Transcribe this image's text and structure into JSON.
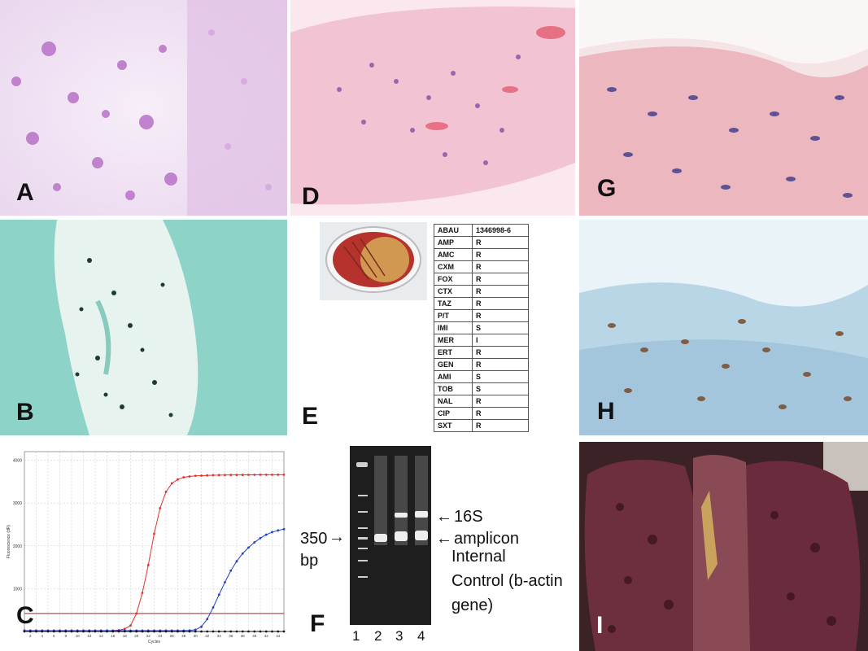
{
  "panels": {
    "A": "A",
    "B": "B",
    "C": "C",
    "D": "D",
    "E": "E",
    "F": "F",
    "G": "G",
    "H": "H",
    "I": "I"
  },
  "susceptibility": {
    "header": [
      "ABAU",
      "1346998-6"
    ],
    "rows": [
      [
        "AMP",
        "R"
      ],
      [
        "AMC",
        "R"
      ],
      [
        "CXM",
        "R"
      ],
      [
        "FOX",
        "R"
      ],
      [
        "CTX",
        "R"
      ],
      [
        "TAZ",
        "R"
      ],
      [
        "P/T",
        "R"
      ],
      [
        "IMI",
        "S"
      ],
      [
        "MER",
        "I"
      ],
      [
        "ERT",
        "R"
      ],
      [
        "GEN",
        "R"
      ],
      [
        "AMI",
        "S"
      ],
      [
        "TOB",
        "S"
      ],
      [
        "NAL",
        "R"
      ],
      [
        "CIP",
        "R"
      ],
      [
        "SXT",
        "R"
      ]
    ]
  },
  "gel": {
    "marker_label": [
      "350",
      "bp"
    ],
    "band_16s": "16S",
    "band_amplicon": "amplicon",
    "internal_control": [
      "Internal",
      "Control (b-actin",
      "gene)"
    ],
    "lanes": [
      "1",
      "2",
      "3",
      "4"
    ]
  },
  "qpcr": {
    "y_axis_label": "Fluorescence (dR)",
    "x_axis_label": "Cycles",
    "y_ticks": [
      "4000",
      "3000",
      "2000",
      "1000"
    ],
    "x_ticks": [
      "2",
      "4",
      "6",
      "8",
      "10",
      "12",
      "14",
      "16",
      "18",
      "20",
      "22",
      "24",
      "26",
      "28",
      "30",
      "32",
      "34",
      "36",
      "38",
      "40",
      "42",
      "44"
    ],
    "colors": {
      "red_curve": "#e5302b",
      "blue_curve": "#2440c8",
      "baseline": "#111111",
      "threshold": "#b22222"
    }
  },
  "chart_data": {
    "type": "line",
    "xlabel": "Cycles",
    "ylabel": "Fluorescence (dR)",
    "xlim": [
      1,
      45
    ],
    "ylim": [
      0,
      4200
    ],
    "x": [
      1,
      2,
      3,
      4,
      5,
      6,
      7,
      8,
      9,
      10,
      11,
      12,
      13,
      14,
      15,
      16,
      17,
      18,
      19,
      20,
      21,
      22,
      23,
      24,
      25,
      26,
      27,
      28,
      29,
      30,
      31,
      32,
      33,
      34,
      35,
      36,
      37,
      38,
      39,
      40,
      41,
      42,
      43,
      44,
      45
    ],
    "series": [
      {
        "values": [
          20,
          20,
          20,
          20,
          20,
          20,
          20,
          20,
          20,
          20,
          20,
          20,
          20,
          20,
          20,
          22,
          30,
          60,
          140,
          420,
          900,
          1550,
          2280,
          2880,
          3260,
          3460,
          3550,
          3600,
          3620,
          3635,
          3640,
          3645,
          3650,
          3652,
          3654,
          3655,
          3656,
          3657,
          3658,
          3659,
          3660,
          3660,
          3660,
          3660,
          3660
        ]
      },
      {
        "values": [
          20,
          20,
          20,
          20,
          20,
          20,
          20,
          20,
          20,
          20,
          20,
          20,
          20,
          20,
          20,
          20,
          20,
          20,
          20,
          20,
          20,
          20,
          20,
          20,
          20,
          20,
          20,
          20,
          24,
          40,
          110,
          290,
          560,
          860,
          1150,
          1420,
          1640,
          1820,
          1960,
          2080,
          2180,
          2260,
          2320,
          2360,
          2390
        ]
      },
      {
        "values": [
          0,
          0,
          0,
          0,
          0,
          0,
          0,
          0,
          0,
          0,
          0,
          0,
          0,
          0,
          0,
          0,
          0,
          0,
          0,
          0,
          0,
          0,
          0,
          0,
          0,
          0,
          0,
          0,
          0,
          0,
          0,
          0,
          0,
          0,
          0,
          0,
          0,
          0,
          0,
          0,
          0,
          0,
          0,
          0,
          0
        ]
      }
    ],
    "threshold": 420
  }
}
